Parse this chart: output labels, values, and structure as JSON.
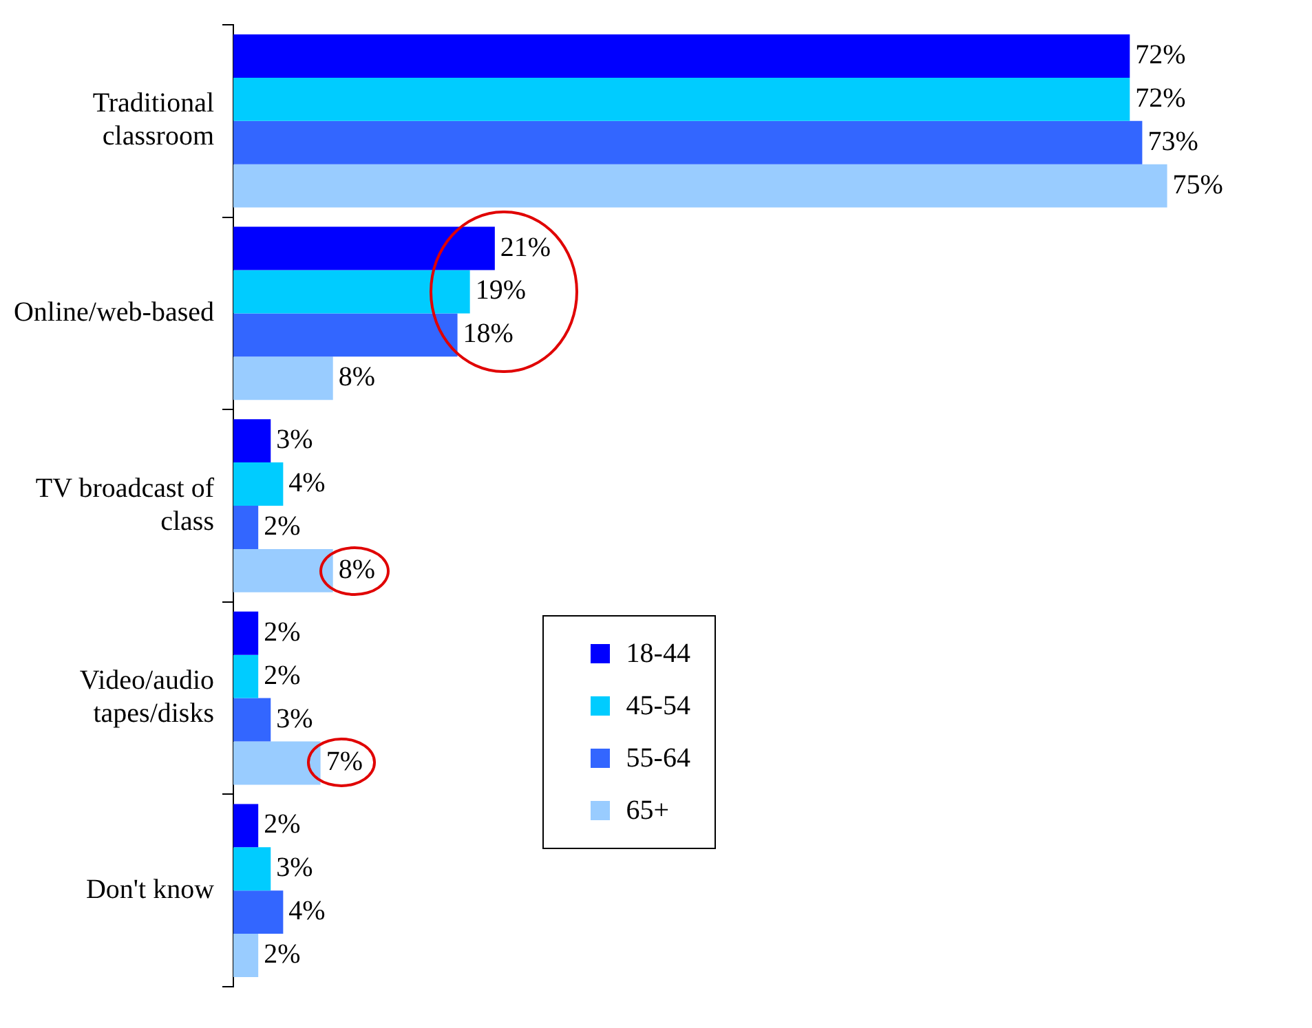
{
  "chart_data": {
    "type": "bar",
    "orientation": "horizontal",
    "categories": [
      "Traditional classroom",
      "Online/web-based",
      "TV broadcast of class",
      "Video/audio tapes/disks",
      "Don't know"
    ],
    "series": [
      {
        "name": "18-44",
        "color": "#0000ff",
        "values": [
          72,
          21,
          3,
          2,
          2
        ],
        "value_labels": [
          "72%",
          "21%",
          "3%",
          "2%",
          "2%"
        ]
      },
      {
        "name": "45-54",
        "color": "#00ccff",
        "values": [
          72,
          19,
          4,
          2,
          3
        ],
        "value_labels": [
          "72%",
          "19%",
          "4%",
          "2%",
          "3%"
        ]
      },
      {
        "name": "55-64",
        "color": "#3366ff",
        "values": [
          73,
          18,
          2,
          3,
          4
        ],
        "value_labels": [
          "73%",
          "18%",
          "2%",
          "3%",
          "4%"
        ]
      },
      {
        "name": "65+",
        "color": "#99ccff",
        "values": [
          75,
          8,
          8,
          7,
          2
        ],
        "value_labels": [
          "75%",
          "8%",
          "8%",
          "7%",
          "2%"
        ]
      }
    ],
    "legend": "bottom",
    "tick_labels": "y"
  }
}
